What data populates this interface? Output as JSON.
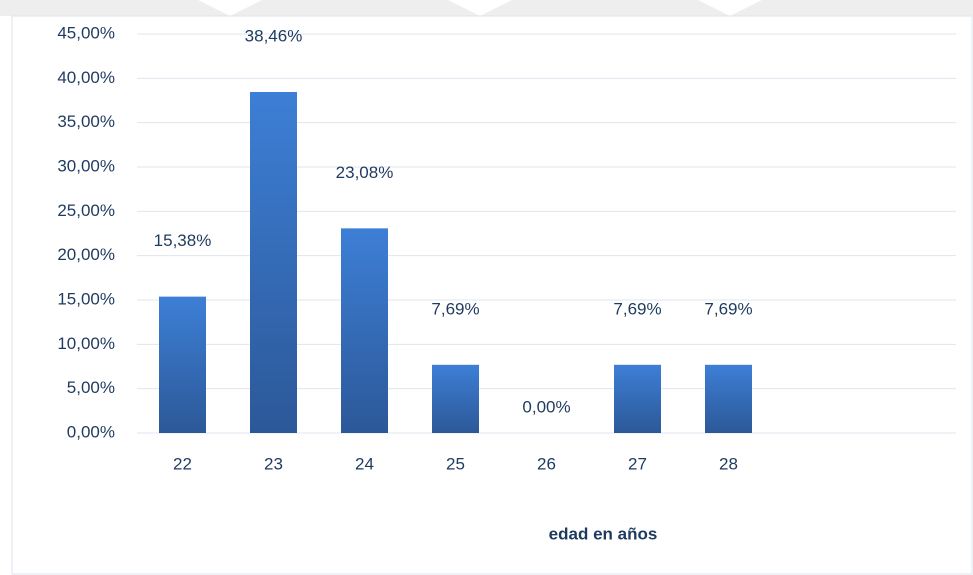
{
  "chart_data": {
    "type": "bar",
    "x_label": "edad en años",
    "categories": [
      "22",
      "23",
      "24",
      "25",
      "26",
      "27",
      "28",
      null,
      null
    ],
    "values": [
      15.38,
      38.46,
      23.08,
      7.69,
      0,
      7.69,
      7.69,
      null,
      null
    ],
    "value_labels": [
      "15,38%",
      "38,46%",
      "23,08%",
      "7,69%",
      "0,00%",
      "7,69%",
      "7,69%",
      null,
      null
    ],
    "color": "#3a7bd5",
    "ylim": [
      0,
      45
    ],
    "yticks": [
      {
        "value": 0,
        "label": "0,00%"
      },
      {
        "value": 5,
        "label": "5,00%"
      },
      {
        "value": 10,
        "label": "10,00%"
      },
      {
        "value": 15,
        "label": "15,00%"
      },
      {
        "value": 20,
        "label": "20,00%"
      },
      {
        "value": 25,
        "label": "25,00%"
      },
      {
        "value": 30,
        "label": "30,00%"
      },
      {
        "value": 35,
        "label": "35,00%"
      },
      {
        "value": 40,
        "label": "40,00%"
      },
      {
        "value": 45,
        "label": "45,00%"
      }
    ],
    "grid": true
  }
}
